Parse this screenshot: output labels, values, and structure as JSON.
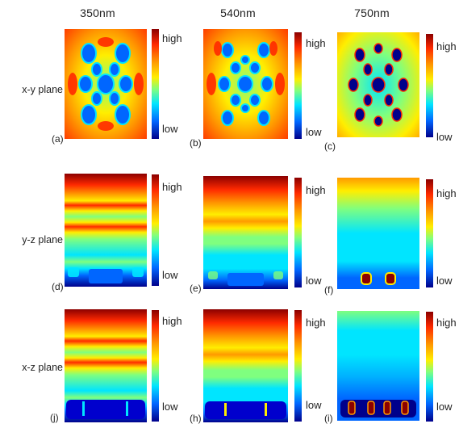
{
  "columns": [
    "350nm",
    "540nm",
    "750nm"
  ],
  "rows": [
    "x-y plane",
    "y-z plane",
    "x-z plane"
  ],
  "colorbar": {
    "high": "high",
    "low": "low"
  },
  "panel_labels": [
    "(a)",
    "(b)",
    "(c)",
    "(d)",
    "(e)",
    "(f)",
    "(j)",
    "(h)",
    "(i)"
  ],
  "colormap": [
    "#00008b",
    "#0066ff",
    "#00e5ff",
    "#7fff7f",
    "#ffee00",
    "#ff9900",
    "#ff2a00",
    "#8b0000"
  ]
}
